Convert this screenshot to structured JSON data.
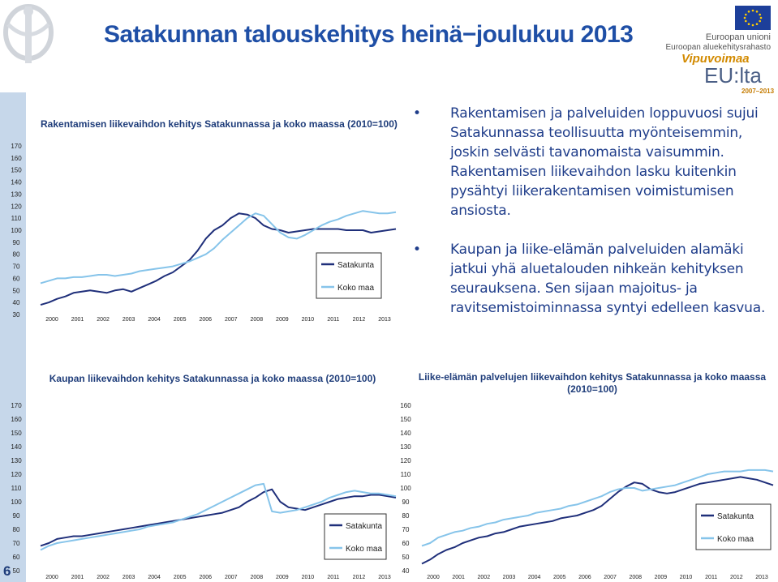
{
  "header": {
    "title": "Satakunnan talouskehitys heinä−joulukuu 2013",
    "eu_text_1": "Euroopan unioni",
    "eu_text_2": "Euroopan aluekehitysrahasto",
    "vipu": "Vipuvoimaa",
    "euilta": "EU:lta",
    "euilta_years": "2007–2013"
  },
  "slide_number": "6",
  "bullets": [
    "Rakentamisen ja palveluiden loppuvuosi sujui Satakunnassa teollisuutta myönteisemmin, joskin selvästi tavanomaista vaisummin. Rakentamisen liikevaihdon lasku kuitenkin pysähtyi liikerakentamisen voimistumisen ansiosta.",
    "Kaupan ja liike-elämän palveluiden alamäki jatkui yhä aluetalouden nihkeän kehityksen seurauksena. Sen sijaan majoitus- ja ravitsemistoiminnassa syntyi edelleen kasvua."
  ],
  "colors": {
    "satakunta": "#1f2f7a",
    "koko_maa": "#86c4ea",
    "title": "#1f4fa6"
  },
  "chart_data": [
    {
      "type": "line",
      "title": "Rakentamisen liikevaihdon kehitys Satakunnassa ja koko maassa (2010=100)",
      "x_labels": [
        "2000",
        "2001",
        "2002",
        "2003",
        "2004",
        "2005",
        "2006",
        "2007",
        "2008",
        "2009",
        "2010",
        "2011",
        "2012",
        "2013"
      ],
      "y_ticks": [
        "30",
        "40",
        "50",
        "60",
        "70",
        "80",
        "90",
        "100",
        "110",
        "120",
        "130",
        "140",
        "150",
        "160",
        "170"
      ],
      "ylim": [
        30,
        170
      ],
      "legend": [
        "Satakunta",
        "Koko maa"
      ],
      "series": [
        {
          "name": "Satakunta",
          "values": [
            38,
            40,
            43,
            45,
            48,
            49,
            50,
            49,
            48,
            50,
            51,
            49,
            52,
            55,
            58,
            62,
            65,
            70,
            75,
            83,
            93,
            100,
            104,
            110,
            114,
            113,
            110,
            104,
            101,
            100,
            98,
            99,
            100,
            101,
            101,
            101,
            101,
            100,
            100,
            100,
            98,
            99,
            100,
            101
          ]
        },
        {
          "name": "Koko maa",
          "values": [
            56,
            58,
            60,
            60,
            61,
            61,
            62,
            63,
            63,
            62,
            63,
            64,
            66,
            67,
            68,
            69,
            70,
            72,
            74,
            77,
            80,
            85,
            92,
            98,
            104,
            110,
            114,
            112,
            105,
            98,
            94,
            93,
            96,
            100,
            104,
            107,
            109,
            112,
            114,
            116,
            115,
            114,
            114,
            115
          ]
        }
      ]
    },
    {
      "type": "line",
      "title": "Kaupan liikevaihdon kehitys Satakunnassa ja koko maassa (2010=100)",
      "x_labels": [
        "2000",
        "2001",
        "2002",
        "2003",
        "2004",
        "2005",
        "2006",
        "2007",
        "2008",
        "2009",
        "2010",
        "2011",
        "2012",
        "2013"
      ],
      "y_ticks": [
        "50",
        "60",
        "70",
        "80",
        "90",
        "100",
        "110",
        "120",
        "130",
        "140",
        "150",
        "160",
        "170"
      ],
      "ylim": [
        50,
        170
      ],
      "legend": [
        "Satakunta",
        "Koko maa"
      ],
      "series": [
        {
          "name": "Satakunta",
          "values": [
            68,
            70,
            73,
            74,
            75,
            75,
            76,
            77,
            78,
            79,
            80,
            81,
            82,
            83,
            84,
            85,
            86,
            87,
            88,
            89,
            90,
            91,
            92,
            94,
            96,
            100,
            103,
            107,
            109,
            100,
            96,
            95,
            94,
            96,
            98,
            100,
            102,
            103,
            104,
            104,
            105,
            105,
            104,
            103
          ]
        },
        {
          "name": "Koko maa",
          "values": [
            65,
            68,
            70,
            71,
            72,
            73,
            74,
            75,
            76,
            77,
            78,
            79,
            80,
            82,
            83,
            84,
            85,
            87,
            89,
            91,
            94,
            97,
            100,
            103,
            106,
            109,
            112,
            113,
            93,
            92,
            93,
            94,
            96,
            98,
            100,
            103,
            105,
            107,
            108,
            107,
            106,
            106,
            105,
            104
          ]
        }
      ]
    },
    {
      "type": "line",
      "title": "Liike-elämän palvelujen liikevaihdon kehitys Satakunnassa ja koko maassa (2010=100)",
      "x_labels": [
        "2000",
        "2001",
        "2002",
        "2003",
        "2004",
        "2005",
        "2006",
        "2007",
        "2008",
        "2009",
        "2010",
        "2011",
        "2012",
        "2013"
      ],
      "y_ticks": [
        "40",
        "50",
        "60",
        "70",
        "80",
        "90",
        "100",
        "110",
        "120",
        "130",
        "140",
        "150",
        "160"
      ],
      "ylim": [
        40,
        160
      ],
      "legend": [
        "Satakunta",
        "Koko maa"
      ],
      "series": [
        {
          "name": "Satakunta",
          "values": [
            45,
            48,
            52,
            55,
            57,
            60,
            62,
            64,
            65,
            67,
            68,
            70,
            72,
            73,
            74,
            75,
            76,
            78,
            79,
            80,
            82,
            84,
            87,
            92,
            97,
            101,
            104,
            103,
            99,
            97,
            96,
            97,
            99,
            101,
            103,
            104,
            105,
            106,
            107,
            108,
            107,
            106,
            104,
            102
          ]
        },
        {
          "name": "Koko maa",
          "values": [
            58,
            60,
            64,
            66,
            68,
            69,
            71,
            72,
            74,
            75,
            77,
            78,
            79,
            80,
            82,
            83,
            84,
            85,
            87,
            88,
            90,
            92,
            94,
            97,
            99,
            100,
            100,
            98,
            99,
            100,
            101,
            102,
            104,
            106,
            108,
            110,
            111,
            112,
            112,
            112,
            113,
            113,
            113,
            112
          ]
        }
      ]
    }
  ]
}
